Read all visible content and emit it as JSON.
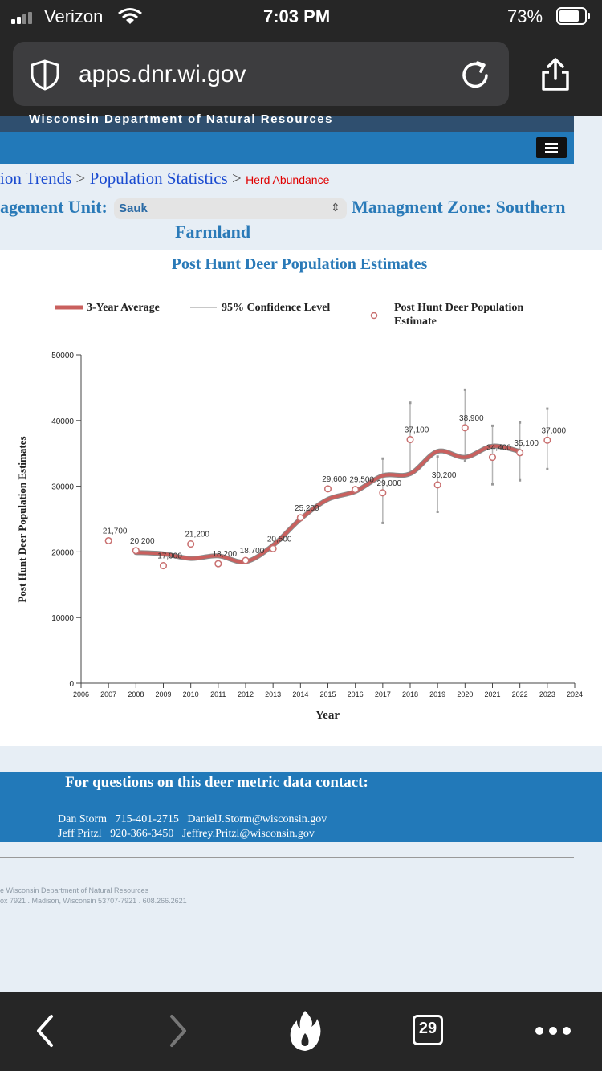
{
  "status_bar": {
    "carrier": "Verizon",
    "time": "7:03 PM",
    "battery": "73%"
  },
  "browser": {
    "url": "apps.dnr.wi.gov",
    "tab_count": "29"
  },
  "site": {
    "title": "Wisconsin Department of Natural Resources"
  },
  "breadcrumb": {
    "items": [
      "ion Trends",
      "Population Statistics"
    ],
    "current": "Herd Abundance",
    "separator": ">"
  },
  "unit": {
    "label": "agement Unit:",
    "value": "Sauk"
  },
  "zone": {
    "label": "Managment Zone: Southern",
    "label_cont": "Farmland"
  },
  "chart_data": {
    "type": "line",
    "title": "Post Hunt Deer Population Estimates",
    "xlabel": "Year",
    "ylabel": "Post Hunt Deer Population Estimates",
    "xlim": [
      2006,
      2024
    ],
    "ylim": [
      0,
      50000
    ],
    "x_ticks": [
      2006,
      2007,
      2008,
      2009,
      2010,
      2011,
      2012,
      2013,
      2014,
      2015,
      2016,
      2017,
      2018,
      2019,
      2020,
      2021,
      2022,
      2023,
      2024
    ],
    "y_ticks": [
      0,
      10000,
      20000,
      30000,
      40000,
      50000
    ],
    "legend": [
      "3-Year Average",
      "95% Confidence Level",
      "Post Hunt Deer Population Estimate"
    ],
    "colors": {
      "average": "#c9605e",
      "ci": "#b5b5b5",
      "point": "#c97070"
    },
    "estimates": [
      {
        "x": 2007,
        "y": 21700,
        "label": "21,700"
      },
      {
        "x": 2008,
        "y": 20200,
        "label": "20,200"
      },
      {
        "x": 2009,
        "y": 17900,
        "label": "17,900"
      },
      {
        "x": 2010,
        "y": 21200,
        "label": "21,200"
      },
      {
        "x": 2011,
        "y": 18200,
        "label": "18,200"
      },
      {
        "x": 2012,
        "y": 18700,
        "label": "18,700"
      },
      {
        "x": 2013,
        "y": 20500,
        "label": "20,500"
      },
      {
        "x": 2014,
        "y": 25200,
        "label": "25,200"
      },
      {
        "x": 2015,
        "y": 29600,
        "label": "29,600"
      },
      {
        "x": 2016,
        "y": 29500,
        "label": "29,500"
      },
      {
        "x": 2017,
        "y": 29000,
        "label": "29,000"
      },
      {
        "x": 2018,
        "y": 37100,
        "label": "37,100"
      },
      {
        "x": 2019,
        "y": 30200,
        "label": "30,200"
      },
      {
        "x": 2020,
        "y": 38900,
        "label": "38,900"
      },
      {
        "x": 2021,
        "y": 34400,
        "label": "34,400"
      },
      {
        "x": 2022,
        "y": 35100,
        "label": "35,100"
      },
      {
        "x": 2023,
        "y": 37000,
        "label": "37,000"
      }
    ],
    "average": [
      {
        "x": 2008,
        "y": 19900
      },
      {
        "x": 2009,
        "y": 19700
      },
      {
        "x": 2010,
        "y": 19000
      },
      {
        "x": 2011,
        "y": 19400
      },
      {
        "x": 2012,
        "y": 18500
      },
      {
        "x": 2013,
        "y": 21000
      },
      {
        "x": 2014,
        "y": 25000
      },
      {
        "x": 2015,
        "y": 28000
      },
      {
        "x": 2016,
        "y": 29200
      },
      {
        "x": 2017,
        "y": 31600
      },
      {
        "x": 2018,
        "y": 31900
      },
      {
        "x": 2019,
        "y": 35300
      },
      {
        "x": 2020,
        "y": 34400
      },
      {
        "x": 2021,
        "y": 36100
      },
      {
        "x": 2022,
        "y": 35300
      }
    ],
    "confidence": [
      {
        "x": 2017,
        "low": 24400,
        "high": 34200
      },
      {
        "x": 2018,
        "low": 32000,
        "high": 42700
      },
      {
        "x": 2019,
        "low": 26100,
        "high": 34500
      },
      {
        "x": 2020,
        "low": 33800,
        "high": 44700
      },
      {
        "x": 2021,
        "low": 30300,
        "high": 39200
      },
      {
        "x": 2022,
        "low": 30900,
        "high": 39700
      },
      {
        "x": 2023,
        "low": 32600,
        "high": 41800
      }
    ]
  },
  "contact": {
    "heading": "For questions on this deer metric data contact:",
    "people": [
      {
        "name": "Dan Storm",
        "phone": "715-401-2715",
        "email": "DanielJ.Storm@wisconsin.gov"
      },
      {
        "name": "Jeff Pritzl",
        "phone": "920-366-3450",
        "email": "Jeffrey.Pritzl@wisconsin.gov"
      }
    ]
  },
  "footer": {
    "line1": "e Wisconsin Department of Natural Resources",
    "line2": "ox 7921 . Madison, Wisconsin 53707-7921 . 608.266.2621"
  }
}
